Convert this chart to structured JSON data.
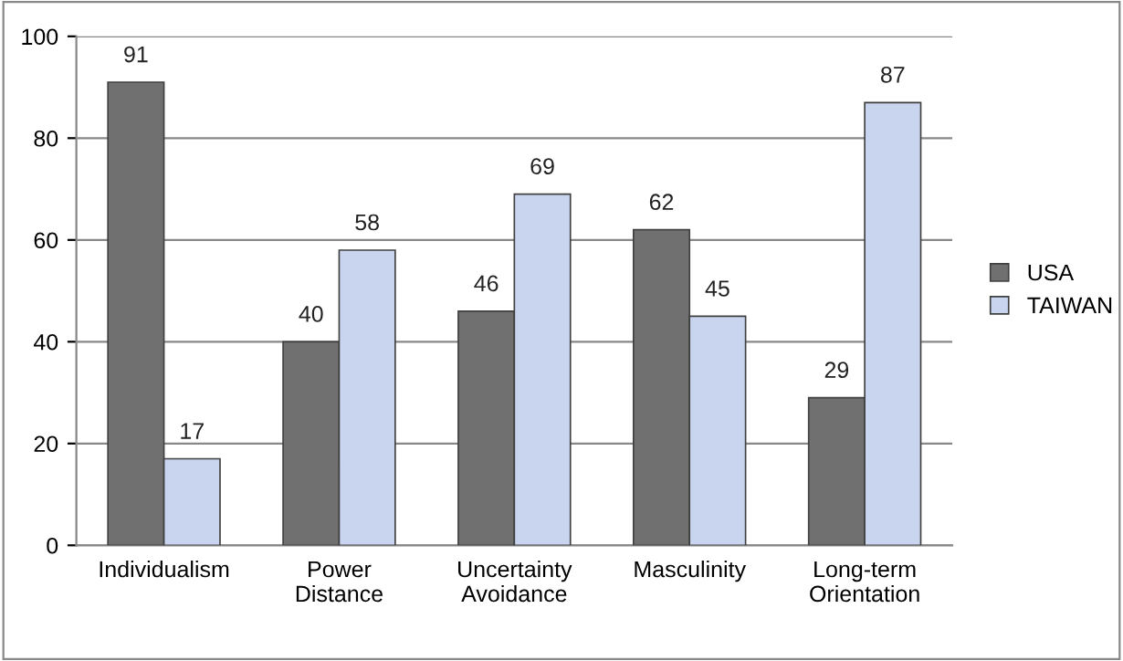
{
  "chart_data": {
    "type": "bar",
    "categories": [
      "Individualism",
      "Power\nDistance",
      "Uncertainty\nAvoidance",
      "Masculinity",
      "Long-term\nOrientation"
    ],
    "series": [
      {
        "name": "USA",
        "color": "#707070",
        "values": [
          91,
          40,
          46,
          62,
          29
        ]
      },
      {
        "name": "TAIWAN",
        "color": "#c9d5ee",
        "values": [
          17,
          58,
          69,
          45,
          87
        ]
      }
    ],
    "ylim": [
      0,
      100
    ],
    "yticks": [
      0,
      20,
      40,
      60,
      80,
      100
    ],
    "grid": "y",
    "legend": "right",
    "data_labels": true
  }
}
